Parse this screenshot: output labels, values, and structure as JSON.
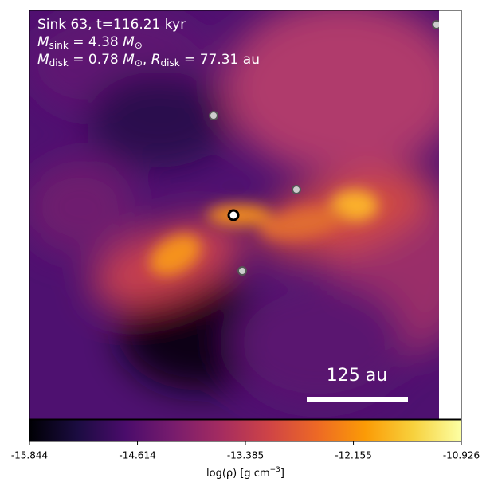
{
  "chart_data": {
    "type": "image",
    "annotations": {
      "line1": "Sink 63, t=116.21 kyr",
      "line2": {
        "symbol": "M",
        "sub": "sink",
        "rest": " = 4.38 ",
        "unit": "M",
        "unit_sub": "⊙"
      },
      "line3": {
        "symbol": "M",
        "sub": "disk",
        "rest": " = 0.78 ",
        "unit": "M",
        "unit_sub": "⊙",
        "sep": ", ",
        "symbol2": "R",
        "sub2": "disk",
        "rest2": " = 77.31 au"
      }
    },
    "scale_bar_label": "125 au",
    "colorbar": {
      "label": {
        "pre": "log(ρ) [g cm",
        "sup": "−3",
        "post": "]"
      },
      "clim": [
        -15.844,
        -10.926
      ],
      "ticks": [
        -15.844,
        -14.614,
        -13.385,
        -12.155,
        -10.926
      ],
      "colormap": [
        "#000004",
        "#1b0c41",
        "#4a0c6b",
        "#781c6d",
        "#a52c60",
        "#cf4446",
        "#ed6925",
        "#fb9b06",
        "#f7d13d",
        "#fcffa4"
      ]
    }
  }
}
